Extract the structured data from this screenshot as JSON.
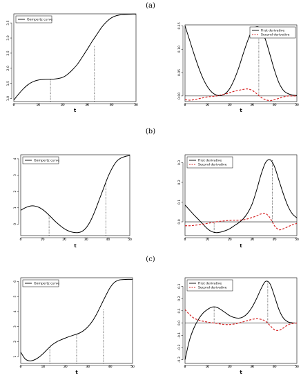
{
  "figure": {
    "panel_labels": [
      "(a)",
      "(b)",
      "(c)"
    ]
  },
  "chart_data": [
    {
      "id": "a-left",
      "type": "line",
      "xlabel": "t",
      "xlim": [
        0,
        50
      ],
      "ylim": [
        0.9,
        3.8
      ],
      "xticks": [
        0,
        10,
        20,
        30,
        40,
        50
      ],
      "yticks": [
        1.0,
        1.5,
        2.0,
        2.5,
        3.0,
        3.5
      ],
      "ytick_labels": [
        "1.0",
        "1.5",
        "2.0",
        "2.5",
        "3.0",
        "3.5"
      ],
      "legend": {
        "position": "top-left",
        "entries": [
          {
            "label": "Gompertz curve",
            "color": "#000000",
            "dash": "solid"
          }
        ]
      },
      "series": [
        {
          "name": "Gompertz curve",
          "color": "#000000",
          "dash": "solid",
          "x": [
            0,
            2,
            4,
            6,
            8,
            10,
            12,
            14,
            16,
            18,
            20,
            22,
            24,
            26,
            28,
            30,
            32,
            34,
            36,
            38,
            40,
            42,
            44,
            46,
            48,
            50
          ],
          "y": [
            0.95,
            1.15,
            1.33,
            1.47,
            1.56,
            1.61,
            1.63,
            1.64,
            1.64,
            1.66,
            1.7,
            1.8,
            1.95,
            2.13,
            2.37,
            2.62,
            2.88,
            3.12,
            3.36,
            3.54,
            3.67,
            3.74,
            3.77,
            3.78,
            3.79,
            3.79
          ]
        }
      ],
      "vlines": [
        {
          "x": 15,
          "y": 1.64
        },
        {
          "x": 33,
          "y": 2.75
        }
      ]
    },
    {
      "id": "a-right",
      "type": "line",
      "xlabel": "t",
      "xlim": [
        0,
        50
      ],
      "ylim": [
        -0.012,
        0.152
      ],
      "xticks": [
        0,
        10,
        20,
        30,
        40,
        50
      ],
      "yticks": [
        0.0,
        0.05,
        0.1,
        0.15
      ],
      "ytick_labels": [
        "0.00",
        "0.05",
        "0.10",
        "0.15"
      ],
      "hline": 0,
      "legend": {
        "position": "top-right",
        "entries": [
          {
            "label": "First derivative",
            "color": "#000000",
            "dash": "solid"
          },
          {
            "label": "Second derivative",
            "color": "#d62728",
            "dash": "dashed"
          }
        ]
      },
      "series": [
        {
          "name": "First derivative",
          "color": "#000000",
          "dash": "solid",
          "x": [
            0,
            2,
            4,
            6,
            8,
            10,
            12,
            14,
            16,
            18,
            20,
            22,
            24,
            26,
            28,
            30,
            32,
            34,
            36,
            38,
            40,
            42,
            44,
            46,
            48,
            50
          ],
          "y": [
            0.15,
            0.12,
            0.09,
            0.062,
            0.038,
            0.02,
            0.008,
            0.002,
            0.001,
            0.005,
            0.016,
            0.035,
            0.06,
            0.09,
            0.118,
            0.14,
            0.148,
            0.142,
            0.12,
            0.088,
            0.055,
            0.028,
            0.012,
            0.005,
            0.002,
            0.001
          ]
        },
        {
          "name": "Second derivative",
          "color": "#d62728",
          "dash": "dashed",
          "x": [
            0,
            2,
            4,
            6,
            8,
            10,
            12,
            14,
            16,
            18,
            20,
            22,
            24,
            26,
            28,
            30,
            32,
            34,
            36,
            38,
            40,
            42,
            44,
            46,
            48,
            50
          ],
          "y": [
            -0.008,
            -0.009,
            -0.008,
            -0.006,
            -0.004,
            -0.002,
            -0.001,
            0.0,
            0.002,
            0.004,
            0.007,
            0.01,
            0.012,
            0.014,
            0.015,
            0.012,
            0.005,
            -0.003,
            -0.008,
            -0.01,
            -0.008,
            -0.005,
            -0.002,
            0.0,
            0.0,
            0.0
          ]
        }
      ],
      "vlines": [
        {
          "x": 15,
          "y": 0.001
        },
        {
          "x": 33,
          "y": 0.148
        }
      ]
    },
    {
      "id": "b-left",
      "type": "line",
      "xlabel": "t",
      "xlim": [
        0,
        50
      ],
      "ylim": [
        -0.7,
        4.25
      ],
      "xticks": [
        0,
        10,
        20,
        30,
        40,
        50
      ],
      "yticks": [
        0,
        1,
        2,
        3,
        4
      ],
      "ytick_labels": [
        "0",
        "1",
        "2",
        "3",
        "4"
      ],
      "legend": {
        "position": "top-left",
        "entries": [
          {
            "label": "Gompertz curve",
            "color": "#000000",
            "dash": "solid"
          }
        ]
      },
      "series": [
        {
          "name": "Gompertz curve",
          "color": "#000000",
          "dash": "solid",
          "x": [
            0,
            2,
            4,
            6,
            8,
            10,
            12,
            14,
            16,
            18,
            20,
            22,
            24,
            26,
            28,
            30,
            32,
            34,
            36,
            38,
            40,
            42,
            44,
            46,
            48,
            50
          ],
          "y": [
            0.85,
            1.0,
            1.1,
            1.12,
            1.05,
            0.9,
            0.68,
            0.42,
            0.15,
            -0.08,
            -0.28,
            -0.42,
            -0.5,
            -0.52,
            -0.45,
            -0.22,
            0.2,
            0.8,
            1.5,
            2.2,
            2.9,
            3.45,
            3.85,
            4.05,
            4.15,
            4.2
          ]
        }
      ],
      "vlines": [
        {
          "x": 13,
          "y": 0.55
        },
        {
          "x": 39,
          "y": 2.55
        }
      ]
    },
    {
      "id": "b-right",
      "type": "line",
      "xlabel": "t",
      "xlim": [
        0,
        50
      ],
      "ylim": [
        -0.07,
        0.34
      ],
      "xticks": [
        0,
        10,
        20,
        30,
        40,
        50
      ],
      "yticks": [
        0.0,
        0.1,
        0.2,
        0.3
      ],
      "ytick_labels": [
        "0.0",
        "0.1",
        "0.2",
        "0.3"
      ],
      "hline": 0,
      "legend": {
        "position": "top-left",
        "entries": [
          {
            "label": "First derivative",
            "color": "#000000",
            "dash": "solid"
          },
          {
            "label": "Second derivative",
            "color": "#d62728",
            "dash": "dashed"
          }
        ]
      },
      "series": [
        {
          "name": "First derivative",
          "color": "#000000",
          "dash": "solid",
          "x": [
            0,
            2,
            4,
            6,
            8,
            10,
            12,
            14,
            16,
            18,
            20,
            22,
            24,
            26,
            28,
            30,
            32,
            34,
            36,
            38,
            40,
            42,
            44,
            46,
            48,
            50
          ],
          "y": [
            0.085,
            0.06,
            0.035,
            0.012,
            -0.012,
            -0.035,
            -0.05,
            -0.055,
            -0.052,
            -0.045,
            -0.035,
            -0.02,
            -0.005,
            0.015,
            0.045,
            0.09,
            0.16,
            0.24,
            0.3,
            0.315,
            0.28,
            0.21,
            0.14,
            0.08,
            0.04,
            0.02
          ]
        },
        {
          "name": "Second derivative",
          "color": "#d62728",
          "dash": "dashed",
          "x": [
            0,
            2,
            4,
            6,
            8,
            10,
            12,
            14,
            16,
            18,
            20,
            22,
            24,
            26,
            28,
            30,
            32,
            34,
            36,
            38,
            40,
            42,
            44,
            46,
            48,
            50
          ],
          "y": [
            -0.02,
            -0.02,
            -0.018,
            -0.015,
            -0.012,
            -0.008,
            -0.004,
            0.0,
            0.003,
            0.005,
            0.007,
            0.008,
            0.008,
            0.01,
            0.015,
            0.022,
            0.03,
            0.04,
            0.042,
            0.02,
            -0.02,
            -0.04,
            -0.035,
            -0.025,
            -0.015,
            -0.008
          ]
        }
      ],
      "vlines": [
        {
          "x": 13,
          "y": -0.055
        },
        {
          "x": 39,
          "y": 0.315
        }
      ]
    },
    {
      "id": "c-left",
      "type": "line",
      "xlabel": "t",
      "xlim": [
        0,
        50
      ],
      "ylim": [
        0.55,
        6.25
      ],
      "xticks": [
        0,
        10,
        20,
        30,
        40,
        50
      ],
      "yticks": [
        1,
        2,
        3,
        4,
        5,
        6
      ],
      "ytick_labels": [
        "1",
        "2",
        "3",
        "4",
        "5",
        "6"
      ],
      "legend": {
        "position": "top-left",
        "entries": [
          {
            "label": "Gompertz curve",
            "color": "#000000",
            "dash": "solid"
          }
        ]
      },
      "series": [
        {
          "name": "Gompertz curve",
          "color": "#000000",
          "dash": "solid",
          "x": [
            0,
            2,
            4,
            6,
            8,
            10,
            12,
            14,
            16,
            18,
            20,
            22,
            24,
            26,
            28,
            30,
            32,
            34,
            36,
            38,
            40,
            42,
            44,
            46,
            48,
            50
          ],
          "y": [
            1.3,
            0.85,
            0.72,
            0.78,
            0.95,
            1.2,
            1.5,
            1.78,
            1.98,
            2.12,
            2.24,
            2.35,
            2.45,
            2.55,
            2.72,
            2.98,
            3.35,
            3.85,
            4.45,
            5.05,
            5.6,
            5.95,
            6.1,
            6.13,
            6.14,
            6.14
          ]
        }
      ],
      "vlines": [
        {
          "x": 13,
          "y": 1.65
        },
        {
          "x": 25,
          "y": 2.5
        },
        {
          "x": 37,
          "y": 4.15
        }
      ]
    },
    {
      "id": "c-right",
      "type": "line",
      "xlabel": "t",
      "xlim": [
        0,
        50
      ],
      "ylim": [
        -0.33,
        0.37
      ],
      "xticks": [
        0,
        10,
        20,
        30,
        40,
        50
      ],
      "yticks": [
        -0.3,
        -0.2,
        -0.1,
        0.0,
        0.1,
        0.2,
        0.3
      ],
      "ytick_labels": [
        "-0.3",
        "-0.2",
        "-0.1",
        "0.0",
        "0.1",
        "0.2",
        "0.3"
      ],
      "hline": 0,
      "legend": {
        "position": "top-left",
        "entries": [
          {
            "label": "First derivative",
            "color": "#000000",
            "dash": "solid"
          },
          {
            "label": "Second derivative",
            "color": "#d62728",
            "dash": "dashed"
          }
        ]
      },
      "series": [
        {
          "name": "First derivative",
          "color": "#000000",
          "dash": "solid",
          "x": [
            0,
            2,
            4,
            6,
            8,
            10,
            12,
            14,
            16,
            18,
            20,
            22,
            24,
            26,
            28,
            30,
            32,
            34,
            36,
            38,
            40,
            42,
            44,
            46,
            48,
            50
          ],
          "y": [
            -0.3,
            -0.14,
            -0.04,
            0.03,
            0.08,
            0.11,
            0.13,
            0.13,
            0.11,
            0.085,
            0.06,
            0.045,
            0.04,
            0.05,
            0.08,
            0.13,
            0.2,
            0.28,
            0.34,
            0.32,
            0.22,
            0.11,
            0.04,
            0.01,
            0.002,
            0.0
          ]
        },
        {
          "name": "Second derivative",
          "color": "#d62728",
          "dash": "dashed",
          "x": [
            0,
            2,
            4,
            6,
            8,
            10,
            12,
            14,
            16,
            18,
            20,
            22,
            24,
            26,
            28,
            30,
            32,
            34,
            36,
            38,
            40,
            42,
            44,
            46,
            48,
            50
          ],
          "y": [
            0.11,
            0.07,
            0.04,
            0.025,
            0.015,
            0.008,
            0.002,
            -0.002,
            -0.008,
            -0.012,
            -0.012,
            -0.008,
            0.0,
            0.01,
            0.02,
            0.03,
            0.035,
            0.03,
            0.015,
            -0.02,
            -0.055,
            -0.06,
            -0.04,
            -0.015,
            -0.004,
            0.0
          ]
        }
      ],
      "vlines": [
        {
          "x": 13,
          "y": 0.13
        },
        {
          "x": 37,
          "y": 0.34
        }
      ]
    }
  ]
}
